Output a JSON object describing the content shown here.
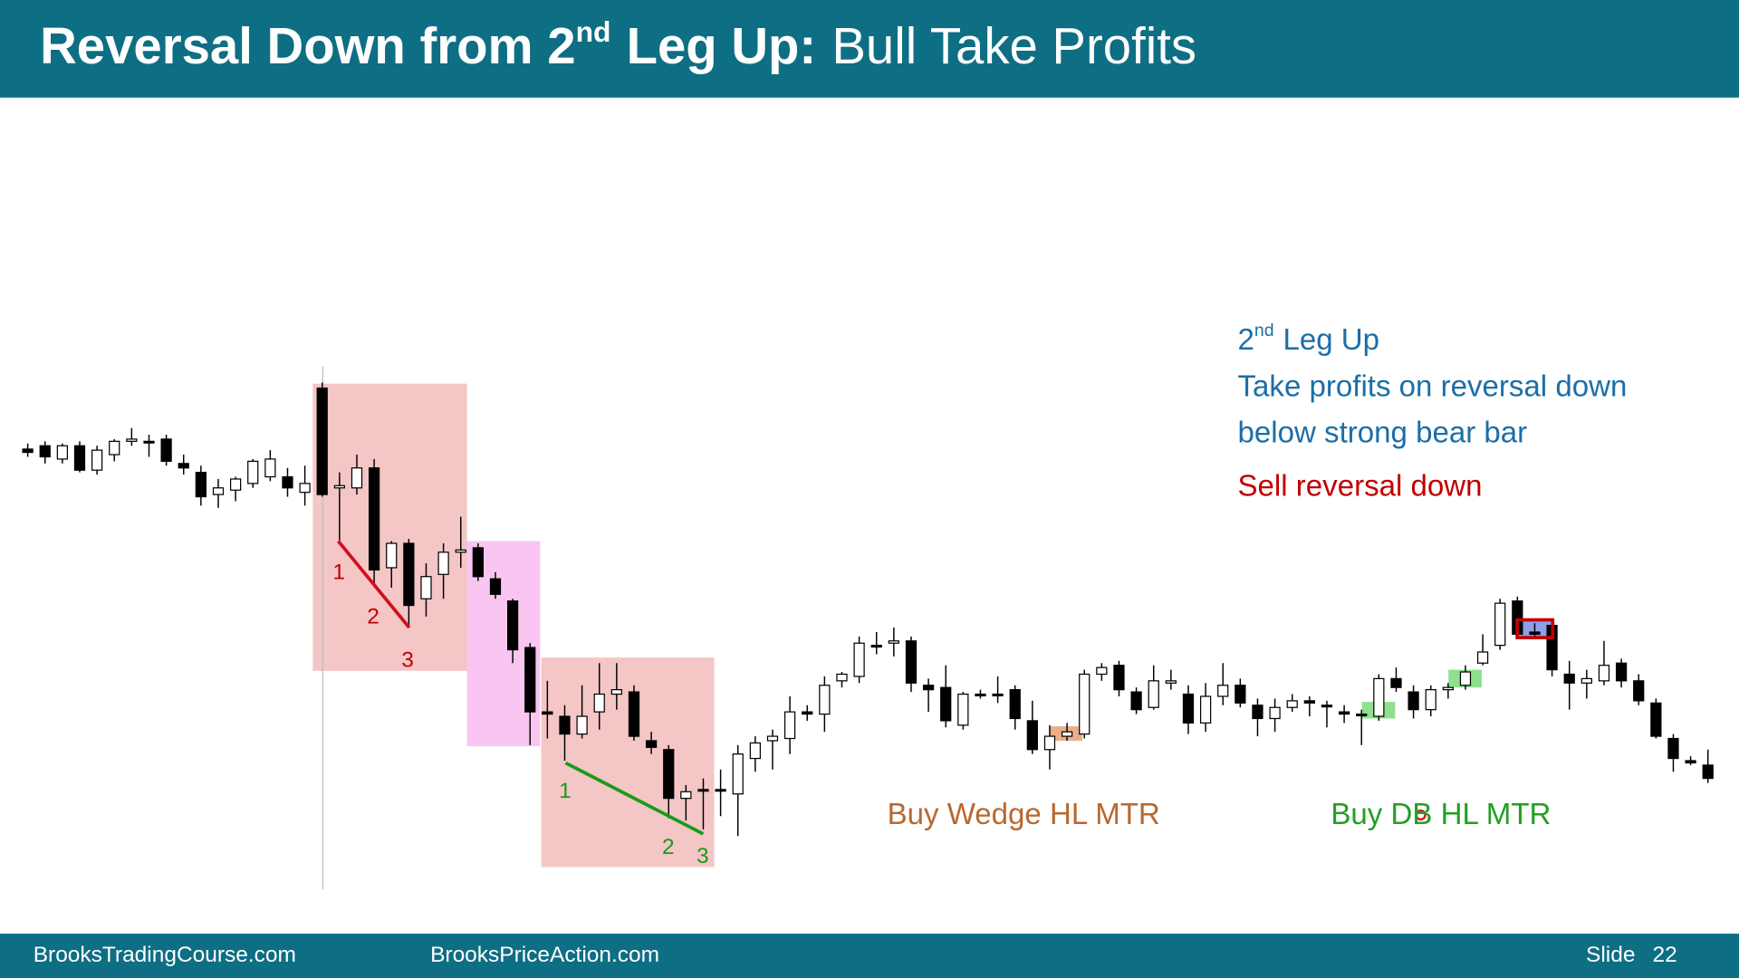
{
  "header": {
    "title_bold": "Reversal Down from 2",
    "title_sup": "nd",
    "title_bold_end": "Leg Up:",
    "title_light": "Bull Take Profits"
  },
  "chart_data": {
    "type": "candlestick",
    "ylim": [
      150,
      700
    ],
    "bull_color": "#ffffff",
    "bear_color": "#000000",
    "candles": [
      [
        595,
        600,
        588,
        592
      ],
      [
        598,
        602,
        582,
        588
      ],
      [
        586,
        600,
        582,
        598
      ],
      [
        598,
        602,
        574,
        576
      ],
      [
        576,
        598,
        572,
        594
      ],
      [
        590,
        604,
        584,
        602
      ],
      [
        602,
        614,
        598,
        604
      ],
      [
        602,
        608,
        588,
        602
      ],
      [
        604,
        608,
        580,
        584
      ],
      [
        582,
        590,
        572,
        578
      ],
      [
        574,
        580,
        544,
        552
      ],
      [
        554,
        568,
        542,
        560
      ],
      [
        558,
        570,
        548,
        568
      ],
      [
        564,
        586,
        560,
        584
      ],
      [
        570,
        594,
        566,
        586
      ],
      [
        570,
        578,
        552,
        560
      ],
      [
        556,
        580,
        544,
        564
      ],
      [
        650,
        655,
        552,
        554
      ],
      [
        560,
        574,
        512,
        562
      ],
      [
        560,
        590,
        554,
        578
      ],
      [
        578,
        586,
        472,
        486
      ],
      [
        488,
        512,
        470,
        510
      ],
      [
        510,
        514,
        434,
        454
      ],
      [
        460,
        492,
        444,
        480
      ],
      [
        482,
        510,
        460,
        502
      ],
      [
        502,
        534,
        488,
        504
      ],
      [
        506,
        510,
        476,
        480
      ],
      [
        478,
        484,
        460,
        464
      ],
      [
        458,
        460,
        402,
        414
      ],
      [
        416,
        420,
        328,
        358
      ],
      [
        358,
        386,
        334,
        356
      ],
      [
        354,
        364,
        314,
        338
      ],
      [
        338,
        382,
        334,
        354
      ],
      [
        358,
        402,
        342,
        374
      ],
      [
        374,
        402,
        360,
        378
      ],
      [
        376,
        382,
        332,
        336
      ],
      [
        332,
        340,
        320,
        326
      ],
      [
        324,
        328,
        262,
        280
      ],
      [
        280,
        292,
        260,
        286
      ],
      [
        288,
        298,
        252,
        288
      ],
      [
        288,
        306,
        264,
        288
      ],
      [
        284,
        328,
        246,
        320
      ],
      [
        316,
        336,
        304,
        330
      ],
      [
        332,
        342,
        306,
        336
      ],
      [
        334,
        372,
        320,
        358
      ],
      [
        358,
        364,
        350,
        356
      ],
      [
        356,
        390,
        340,
        382
      ],
      [
        386,
        394,
        380,
        392
      ],
      [
        390,
        426,
        384,
        420
      ],
      [
        418,
        430,
        410,
        418
      ],
      [
        420,
        434,
        408,
        422
      ],
      [
        422,
        426,
        376,
        384
      ],
      [
        382,
        388,
        358,
        378
      ],
      [
        380,
        400,
        344,
        350
      ],
      [
        346,
        376,
        342,
        374
      ],
      [
        374,
        378,
        370,
        374
      ],
      [
        374,
        390,
        366,
        374
      ],
      [
        378,
        382,
        342,
        352
      ],
      [
        350,
        368,
        320,
        324
      ],
      [
        324,
        346,
        306,
        336
      ],
      [
        336,
        348,
        332,
        340
      ],
      [
        338,
        396,
        334,
        392
      ],
      [
        392,
        402,
        386,
        398
      ],
      [
        400,
        404,
        372,
        378
      ],
      [
        376,
        380,
        356,
        360
      ],
      [
        362,
        400,
        360,
        386
      ],
      [
        384,
        396,
        378,
        386
      ],
      [
        374,
        382,
        338,
        348
      ],
      [
        348,
        384,
        340,
        372
      ],
      [
        372,
        402,
        364,
        382
      ],
      [
        382,
        388,
        362,
        366
      ],
      [
        364,
        370,
        336,
        352
      ],
      [
        352,
        370,
        340,
        362
      ],
      [
        362,
        374,
        358,
        368
      ],
      [
        368,
        372,
        354,
        366
      ],
      [
        364,
        368,
        344,
        364
      ],
      [
        358,
        364,
        348,
        356
      ],
      [
        356,
        360,
        328,
        356
      ],
      [
        354,
        392,
        350,
        388
      ],
      [
        388,
        398,
        376,
        380
      ],
      [
        376,
        382,
        352,
        360
      ],
      [
        360,
        382,
        354,
        378
      ],
      [
        378,
        384,
        370,
        380
      ],
      [
        382,
        400,
        378,
        394
      ],
      [
        402,
        428,
        400,
        412
      ],
      [
        418,
        460,
        414,
        456
      ],
      [
        458,
        462,
        424,
        428
      ],
      [
        430,
        438,
        426,
        428
      ],
      [
        436,
        440,
        390,
        396
      ],
      [
        392,
        404,
        360,
        384
      ],
      [
        384,
        396,
        370,
        388
      ],
      [
        386,
        422,
        382,
        400
      ],
      [
        402,
        406,
        380,
        386
      ],
      [
        386,
        392,
        364,
        368
      ],
      [
        366,
        370,
        334,
        336
      ],
      [
        334,
        338,
        304,
        316
      ],
      [
        314,
        318,
        310,
        312
      ],
      [
        310,
        324,
        294,
        298
      ]
    ]
  },
  "annotations": {
    "red_counts": [
      "1",
      "2",
      "3"
    ],
    "green_counts": [
      "1",
      "2",
      "3"
    ],
    "buy_wedge": "Buy Wedge HL MTR",
    "buy_db": "Buy DB HL MTR"
  },
  "notes": {
    "leg_number": "2",
    "leg_sup": "nd",
    "leg_rest": "Leg Up",
    "line2": "Take profits on reversal down",
    "line3": "below strong bear bar",
    "sell": "Sell reversal down"
  },
  "footer": {
    "left": "BrooksTradingCourse.com",
    "middle": "BrooksPriceAction.com",
    "slide_label": "Slide",
    "slide_number": "22"
  }
}
